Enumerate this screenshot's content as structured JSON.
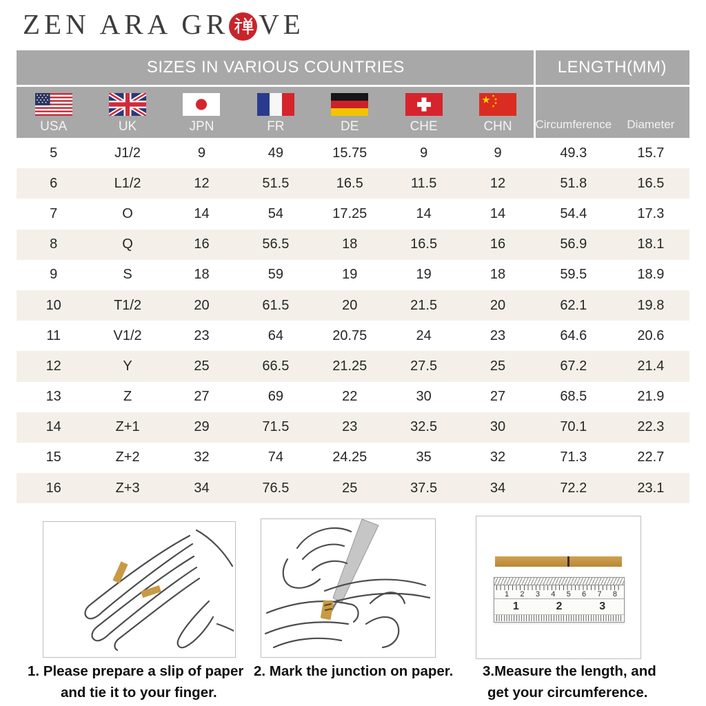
{
  "brand": {
    "name_left": "ZEN ARA GR",
    "seal_char": "禅",
    "name_right": "VE"
  },
  "table": {
    "title_sizes": "SIZES IN VARIOUS COUNTRIES",
    "title_length": "LENGTH(MM)",
    "countries": [
      {
        "code": "USA",
        "flag_icon": "usa-flag-icon"
      },
      {
        "code": "UK",
        "flag_icon": "uk-flag-icon"
      },
      {
        "code": "JPN",
        "flag_icon": "japan-flag-icon"
      },
      {
        "code": "FR",
        "flag_icon": "france-flag-icon"
      },
      {
        "code": "DE",
        "flag_icon": "germany-flag-icon"
      },
      {
        "code": "CHE",
        "flag_icon": "switzerland-flag-icon"
      },
      {
        "code": "CHN",
        "flag_icon": "china-flag-icon"
      }
    ],
    "length_labels": [
      "Circumference",
      "Diameter"
    ],
    "rows": [
      [
        "5",
        "J1/2",
        "9",
        "49",
        "15.75",
        "9",
        "9",
        "49.3",
        "15.7"
      ],
      [
        "6",
        "L1/2",
        "12",
        "51.5",
        "16.5",
        "11.5",
        "12",
        "51.8",
        "16.5"
      ],
      [
        "7",
        "O",
        "14",
        "54",
        "17.25",
        "14",
        "14",
        "54.4",
        "17.3"
      ],
      [
        "8",
        "Q",
        "16",
        "56.5",
        "18",
        "16.5",
        "16",
        "56.9",
        "18.1"
      ],
      [
        "9",
        "S",
        "18",
        "59",
        "19",
        "19",
        "18",
        "59.5",
        "18.9"
      ],
      [
        "10",
        "T1/2",
        "20",
        "61.5",
        "20",
        "21.5",
        "20",
        "62.1",
        "19.8"
      ],
      [
        "11",
        "V1/2",
        "23",
        "64",
        "20.75",
        "24",
        "23",
        "64.6",
        "20.6"
      ],
      [
        "12",
        "Y",
        "25",
        "66.5",
        "21.25",
        "27.5",
        "25",
        "67.2",
        "21.4"
      ],
      [
        "13",
        "Z",
        "27",
        "69",
        "22",
        "30",
        "27",
        "68.5",
        "21.9"
      ],
      [
        "14",
        "Z+1",
        "29",
        "71.5",
        "23",
        "32.5",
        "30",
        "70.1",
        "22.3"
      ],
      [
        "15",
        "Z+2",
        "32",
        "74",
        "24.25",
        "35",
        "32",
        "71.3",
        "22.7"
      ],
      [
        "16",
        "Z+3",
        "34",
        "76.5",
        "25",
        "37.5",
        "34",
        "72.2",
        "23.1"
      ]
    ]
  },
  "instructions": [
    {
      "line1": "1. Please prepare a slip of paper",
      "line2": "and tie it to your finger."
    },
    {
      "line1": "2. Mark the junction on paper.",
      "line2": ""
    },
    {
      "line1": "3.Measure the length, and",
      "line2": "get your circumference."
    }
  ],
  "ruler": {
    "cm_numbers": [
      "1",
      "2",
      "3",
      "4",
      "5",
      "6",
      "7",
      "8"
    ],
    "inch_numbers": [
      "1",
      "2",
      "3"
    ]
  },
  "colors": {
    "header_gray": "#a8a8a8",
    "row_shade": "#f4f0e9",
    "seal_red": "#c9242b",
    "paper_tan": "#c79a45"
  }
}
